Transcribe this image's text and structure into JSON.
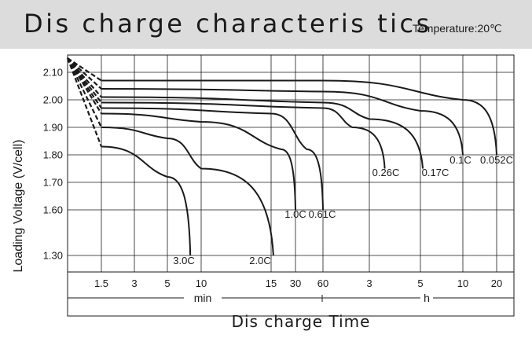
{
  "header": {
    "title": "Dis charge  characteris tics",
    "temperature": "Temperature:20℃"
  },
  "chart_data": {
    "type": "line",
    "title": "Dis charge  characteris tics",
    "subtitle": "Temperature:20℃",
    "ylabel": "Loading Voltage (V/cell)",
    "xlabel": "Dis charge  Time",
    "x_units": [
      "min",
      "h"
    ],
    "y_ticks": [
      "2.10",
      "2.00",
      "1.90",
      "1.80",
      "1.70",
      "1.60",
      "1.30"
    ],
    "x_ticks": [
      "1.5",
      "3",
      "5",
      "10",
      "15",
      "30",
      "60",
      "3",
      "5",
      "10",
      "20"
    ],
    "grid": true,
    "series": [
      {
        "name": "3.0C",
        "x": [
          "1.5 min",
          "5 min",
          "8 min"
        ],
        "y": [
          1.83,
          1.72,
          1.3
        ]
      },
      {
        "name": "2.0C",
        "x": [
          "1.5 min",
          "5 min",
          "10 min",
          "16 min"
        ],
        "y": [
          1.9,
          1.86,
          1.75,
          1.3
        ]
      },
      {
        "name": "1.0C",
        "x": [
          "1.5 min",
          "10 min",
          "20 min",
          "30 min"
        ],
        "y": [
          1.95,
          1.92,
          1.82,
          1.6
        ]
      },
      {
        "name": "0.61C",
        "x": [
          "1.5 min",
          "15 min",
          "40 min",
          "60 min"
        ],
        "y": [
          1.97,
          1.95,
          1.82,
          1.6
        ]
      },
      {
        "name": "0.26C",
        "x": [
          "1.5 min",
          "60 min",
          "2 h",
          "3.5 h"
        ],
        "y": [
          1.99,
          1.97,
          1.9,
          1.75
        ]
      },
      {
        "name": "0.17C",
        "x": [
          "1.5 min",
          "60 min",
          "3 h",
          "5.2 h"
        ],
        "y": [
          2.01,
          1.99,
          1.93,
          1.75
        ]
      },
      {
        "name": "0.1C",
        "x": [
          "1.5 min",
          "60 min",
          "5 h",
          "10 h"
        ],
        "y": [
          2.04,
          2.03,
          1.96,
          1.8
        ]
      },
      {
        "name": "0.052C",
        "x": [
          "1.5 min",
          "60 min",
          "10 h",
          "20 h"
        ],
        "y": [
          2.07,
          2.07,
          2.0,
          1.8
        ]
      }
    ]
  }
}
